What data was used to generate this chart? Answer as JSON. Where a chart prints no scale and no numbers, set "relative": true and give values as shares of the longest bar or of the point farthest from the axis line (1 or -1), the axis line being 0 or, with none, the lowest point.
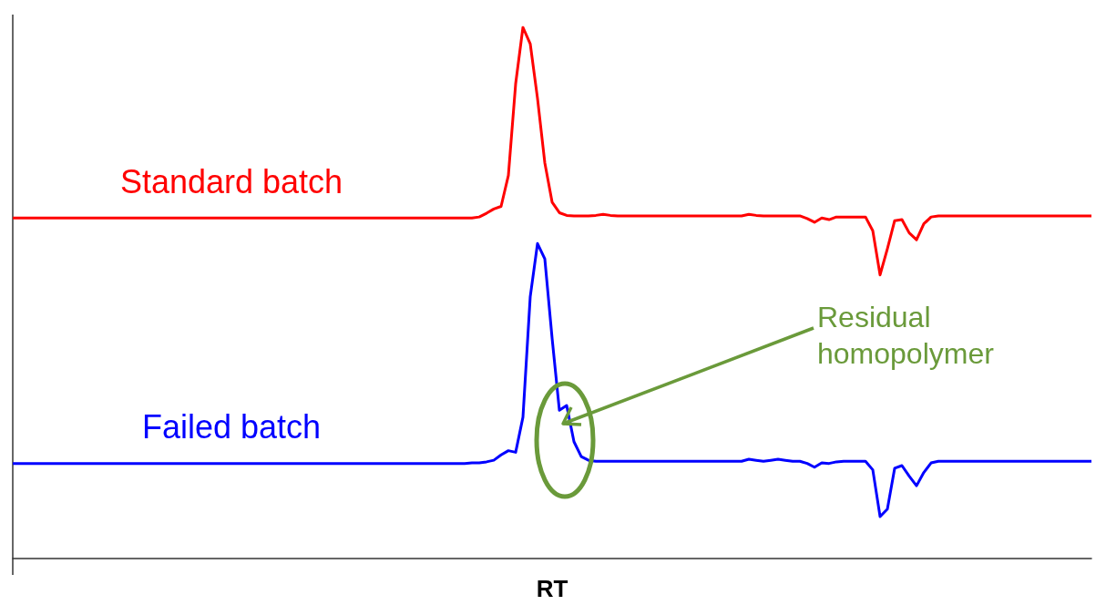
{
  "chart_data": {
    "type": "line",
    "relative": true,
    "xlabel": "RT",
    "categories": [
      null,
      null,
      null,
      null,
      null,
      null,
      null,
      null,
      null,
      null,
      null,
      null,
      null,
      null,
      null,
      null,
      null,
      null,
      null,
      null,
      null,
      null,
      null,
      null,
      null,
      null,
      null,
      null,
      null,
      null,
      null,
      null,
      null,
      null,
      null,
      null,
      null,
      null,
      null,
      null,
      null,
      null,
      null,
      null,
      null,
      null,
      null,
      null,
      null,
      null,
      null,
      null,
      null,
      null,
      null,
      null,
      null,
      null,
      null,
      null,
      null,
      null,
      null,
      null,
      null,
      null,
      null,
      null,
      null,
      null,
      null,
      null,
      null,
      null,
      null,
      null,
      null,
      null,
      null,
      null,
      null,
      null,
      null,
      null,
      null,
      null,
      null,
      null,
      null,
      null,
      null,
      null,
      null,
      null,
      null,
      null,
      null,
      null,
      null,
      null,
      null,
      null,
      null,
      null,
      null,
      null,
      null,
      null,
      null,
      null,
      null,
      null,
      null,
      null,
      null,
      null,
      null,
      null,
      null,
      null,
      null,
      null,
      null,
      null,
      null,
      null,
      null,
      null,
      null,
      null,
      null,
      null,
      null,
      null,
      null,
      null,
      null,
      null,
      null,
      null,
      null,
      null,
      null,
      null,
      null,
      null,
      null,
      null,
      null
    ],
    "series": [
      {
        "name": "Standard batch",
        "color": "#ff0000",
        "values": [
          0.641,
          0.641,
          0.641,
          0.641,
          0.641,
          0.641,
          0.641,
          0.641,
          0.641,
          0.641,
          0.641,
          0.641,
          0.641,
          0.641,
          0.641,
          0.641,
          0.641,
          0.641,
          0.641,
          0.641,
          0.641,
          0.641,
          0.641,
          0.641,
          0.641,
          0.641,
          0.641,
          0.641,
          0.641,
          0.641,
          0.641,
          0.641,
          0.641,
          0.641,
          0.641,
          0.641,
          0.641,
          0.641,
          0.641,
          0.641,
          0.641,
          0.641,
          0.641,
          0.641,
          0.641,
          0.641,
          0.641,
          0.641,
          0.641,
          0.641,
          0.641,
          0.641,
          0.641,
          0.641,
          0.641,
          0.641,
          0.641,
          0.641,
          0.641,
          0.641,
          0.641,
          0.641,
          0.641,
          0.641,
          0.643,
          0.65,
          0.658,
          0.663,
          0.721,
          0.894,
          1,
          0.969,
          0.866,
          0.745,
          0.671,
          0.651,
          0.646,
          0.645,
          0.645,
          0.645,
          0.646,
          0.648,
          0.646,
          0.645,
          0.645,
          0.645,
          0.645,
          0.645,
          0.645,
          0.645,
          0.645,
          0.645,
          0.645,
          0.645,
          0.645,
          0.645,
          0.645,
          0.645,
          0.645,
          0.645,
          0.645,
          0.648,
          0.646,
          0.645,
          0.645,
          0.645,
          0.645,
          0.645,
          0.645,
          0.64,
          0.633,
          0.641,
          0.638,
          0.643,
          0.643,
          0.643,
          0.643,
          0.643,
          0.617,
          0.534,
          0.583,
          0.636,
          0.638,
          0.613,
          0.6,
          0.63,
          0.643,
          0.645,
          0.645,
          0.645,
          0.645,
          0.645,
          0.645,
          0.645,
          0.645,
          0.645,
          0.645,
          0.645,
          0.645,
          0.645,
          0.645,
          0.645,
          0.645,
          0.645,
          0.645,
          0.645,
          0.645,
          0.645,
          0.645
        ]
      },
      {
        "name": "Failed batch",
        "color": "#0000ff",
        "values": [
          0.179,
          0.179,
          0.179,
          0.179,
          0.179,
          0.179,
          0.179,
          0.179,
          0.179,
          0.179,
          0.179,
          0.179,
          0.179,
          0.179,
          0.179,
          0.179,
          0.179,
          0.179,
          0.179,
          0.179,
          0.179,
          0.179,
          0.179,
          0.179,
          0.179,
          0.179,
          0.179,
          0.179,
          0.179,
          0.179,
          0.179,
          0.179,
          0.179,
          0.179,
          0.179,
          0.179,
          0.179,
          0.179,
          0.179,
          0.179,
          0.179,
          0.179,
          0.179,
          0.179,
          0.179,
          0.179,
          0.179,
          0.179,
          0.179,
          0.179,
          0.179,
          0.179,
          0.179,
          0.179,
          0.179,
          0.179,
          0.179,
          0.179,
          0.179,
          0.179,
          0.179,
          0.179,
          0.179,
          0.18,
          0.18,
          0.182,
          0.185,
          0.195,
          0.203,
          0.2,
          0.266,
          0.493,
          0.593,
          0.564,
          0.415,
          0.279,
          0.288,
          0.22,
          0.192,
          0.185,
          0.183,
          0.183,
          0.183,
          0.183,
          0.183,
          0.183,
          0.183,
          0.183,
          0.183,
          0.183,
          0.183,
          0.183,
          0.183,
          0.183,
          0.183,
          0.183,
          0.183,
          0.183,
          0.183,
          0.183,
          0.183,
          0.187,
          0.185,
          0.183,
          0.185,
          0.187,
          0.185,
          0.183,
          0.183,
          0.179,
          0.172,
          0.18,
          0.179,
          0.182,
          0.183,
          0.183,
          0.183,
          0.183,
          0.167,
          0.079,
          0.093,
          0.17,
          0.175,
          0.155,
          0.137,
          0.162,
          0.18,
          0.183,
          0.183,
          0.183,
          0.183,
          0.183,
          0.183,
          0.183,
          0.183,
          0.183,
          0.183,
          0.183,
          0.183,
          0.183,
          0.183,
          0.183,
          0.183,
          0.183,
          0.183,
          0.183,
          0.183,
          0.183,
          0.183
        ]
      }
    ],
    "annotations": [
      "Residual homopolymer"
    ]
  }
}
